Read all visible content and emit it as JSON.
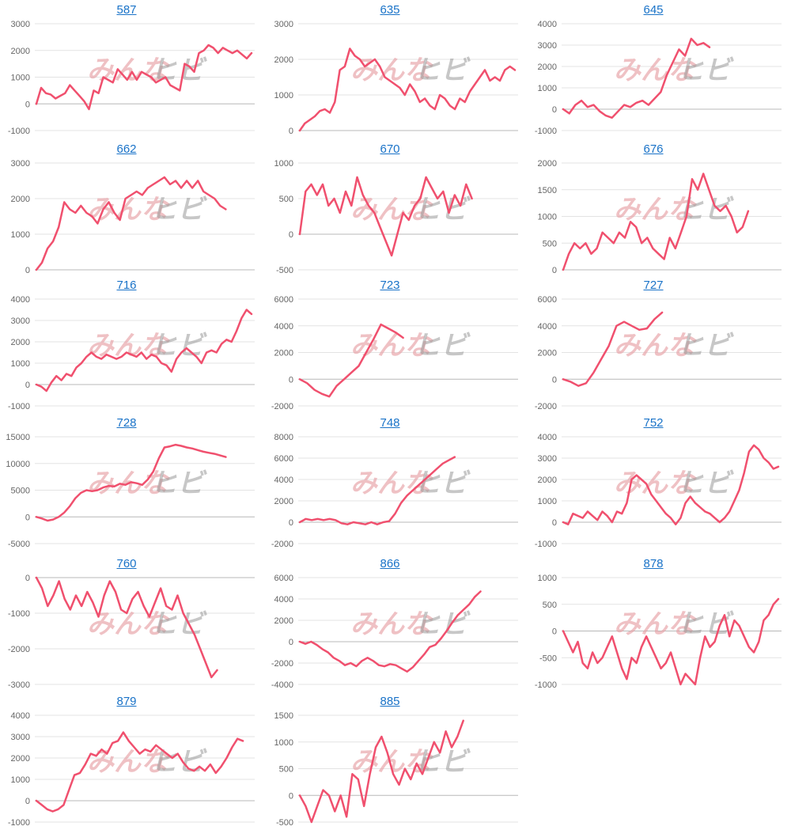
{
  "watermark": {
    "left": "みんな",
    "right": "ヒビ",
    "color_left": "#e8a0a6",
    "color_right": "#9a9a9a"
  },
  "line_color": "#f0506e",
  "link_color": "#1a73c8",
  "chart_data": [
    {
      "type": "line",
      "title": "587",
      "ylim": [
        -1000,
        3000
      ],
      "yticks": [
        -1000,
        0,
        1000,
        2000,
        3000
      ],
      "values": [
        0,
        600,
        400,
        350,
        200,
        300,
        400,
        700,
        500,
        300,
        100,
        -200,
        500,
        400,
        1000,
        900,
        800,
        1300,
        1100,
        900,
        1200,
        900,
        1200,
        1100,
        1000,
        800,
        900,
        1000,
        700,
        600,
        500,
        1500,
        1400,
        1200,
        1900,
        2000,
        2200,
        2100,
        1900,
        2100,
        2000,
        1900,
        2000,
        1850,
        1700,
        1900
      ]
    },
    {
      "type": "line",
      "title": "635",
      "ylim": [
        0,
        3000
      ],
      "yticks": [
        0,
        1000,
        2000,
        3000
      ],
      "values": [
        0,
        200,
        300,
        400,
        550,
        600,
        500,
        800,
        1700,
        1800,
        2300,
        2100,
        2000,
        1800,
        1900,
        2000,
        1800,
        1500,
        1400,
        1300,
        1200,
        1000,
        1300,
        1100,
        800,
        900,
        700,
        600,
        1000,
        900,
        700,
        600,
        900,
        800,
        1100,
        1300,
        1500,
        1700,
        1400,
        1500,
        1400,
        1700,
        1800,
        1700
      ]
    },
    {
      "type": "line",
      "title": "645",
      "ylim": [
        -1000,
        4000
      ],
      "yticks": [
        -1000,
        0,
        1000,
        2000,
        3000,
        4000
      ],
      "values": [
        0,
        -200,
        200,
        400,
        100,
        200,
        -100,
        -300,
        -400,
        -100,
        200,
        100,
        300,
        400,
        200,
        500,
        800,
        1600,
        2200,
        2800,
        2500,
        3300,
        3000,
        3100,
        2900
      ]
    },
    {
      "type": "line",
      "title": "662",
      "ylim": [
        0,
        3000
      ],
      "yticks": [
        0,
        1000,
        2000,
        3000
      ],
      "values": [
        0,
        200,
        600,
        800,
        1200,
        1900,
        1700,
        1600,
        1800,
        1600,
        1500,
        1300,
        1700,
        1900,
        1600,
        1400,
        2000,
        2100,
        2200,
        2100,
        2300,
        2400,
        2500,
        2600,
        2400,
        2500,
        2300,
        2500,
        2300,
        2500,
        2200,
        2100,
        2000,
        1800,
        1700
      ]
    },
    {
      "type": "line",
      "title": "670",
      "ylim": [
        -500,
        1000
      ],
      "yticks": [
        -500,
        0,
        500,
        1000
      ],
      "values": [
        0,
        600,
        700,
        550,
        700,
        400,
        500,
        300,
        600,
        400,
        800,
        550,
        400,
        300,
        100,
        -100,
        -300,
        0,
        300,
        200,
        400,
        500,
        800,
        650,
        500,
        600,
        300,
        550,
        400,
        700,
        500
      ]
    },
    {
      "type": "line",
      "title": "676",
      "ylim": [
        0,
        2000
      ],
      "yticks": [
        0,
        500,
        1000,
        1500,
        2000
      ],
      "values": [
        0,
        300,
        500,
        400,
        500,
        300,
        400,
        700,
        600,
        500,
        700,
        600,
        900,
        800,
        500,
        600,
        400,
        300,
        200,
        600,
        400,
        700,
        1000,
        1700,
        1500,
        1800,
        1500,
        1200,
        1100,
        1200,
        1000,
        700,
        800,
        1100
      ]
    },
    {
      "type": "line",
      "title": "716",
      "ylim": [
        -1000,
        4000
      ],
      "yticks": [
        -1000,
        0,
        1000,
        2000,
        3000,
        4000
      ],
      "values": [
        0,
        -100,
        -300,
        100,
        400,
        200,
        500,
        400,
        800,
        1000,
        1300,
        1500,
        1300,
        1200,
        1400,
        1300,
        1200,
        1300,
        1500,
        1400,
        1300,
        1500,
        1200,
        1400,
        1300,
        1000,
        900,
        600,
        1200,
        1500,
        1700,
        1500,
        1300,
        1000,
        1500,
        1600,
        1500,
        1900,
        2100,
        2000,
        2500,
        3100,
        3500,
        3300
      ]
    },
    {
      "type": "line",
      "title": "723",
      "ylim": [
        -2000,
        6000
      ],
      "yticks": [
        -2000,
        0,
        2000,
        4000,
        6000
      ],
      "values": [
        0,
        -300,
        -800,
        -1100,
        -1300,
        -500,
        0,
        500,
        1000,
        2000,
        3000,
        4100,
        3800,
        3500,
        3100
      ]
    },
    {
      "type": "line",
      "title": "727",
      "ylim": [
        -2000,
        6000
      ],
      "yticks": [
        -2000,
        0,
        2000,
        4000,
        6000
      ],
      "values": [
        0,
        -200,
        -500,
        -300,
        500,
        1500,
        2500,
        4000,
        4300,
        4000,
        3700,
        3800,
        4500,
        5000
      ]
    },
    {
      "type": "line",
      "title": "728",
      "ylim": [
        -5000,
        15000
      ],
      "yticks": [
        -5000,
        0,
        5000,
        10000,
        15000
      ],
      "values": [
        0,
        -300,
        -700,
        -500,
        0,
        800,
        2000,
        3500,
        4500,
        5000,
        4800,
        5000,
        5500,
        5800,
        5700,
        6200,
        6000,
        6500,
        6300,
        6000,
        7000,
        8500,
        11000,
        13000,
        13200,
        13500,
        13300,
        13000,
        12800,
        12500,
        12200,
        12000,
        11800,
        11500,
        11200
      ]
    },
    {
      "type": "line",
      "title": "748",
      "ylim": [
        -2000,
        8000
      ],
      "yticks": [
        -2000,
        0,
        2000,
        4000,
        6000,
        8000
      ],
      "values": [
        0,
        300,
        200,
        300,
        200,
        300,
        200,
        -100,
        -200,
        0,
        -100,
        -200,
        0,
        -200,
        0,
        100,
        800,
        1800,
        2500,
        3000,
        3500,
        4000,
        4500,
        5000,
        5500,
        5800,
        6100
      ]
    },
    {
      "type": "line",
      "title": "752",
      "ylim": [
        -1000,
        4000
      ],
      "yticks": [
        -1000,
        0,
        1000,
        2000,
        3000,
        4000
      ],
      "values": [
        0,
        -100,
        400,
        300,
        200,
        500,
        300,
        100,
        500,
        300,
        0,
        500,
        400,
        900,
        2000,
        2200,
        2000,
        1800,
        1300,
        1000,
        700,
        400,
        200,
        -100,
        200,
        900,
        1200,
        900,
        700,
        500,
        400,
        200,
        0,
        200,
        500,
        1000,
        1500,
        2300,
        3300,
        3600,
        3400,
        3000,
        2800,
        2500,
        2600
      ]
    },
    {
      "type": "line",
      "title": "760",
      "ylim": [
        -3000,
        0
      ],
      "yticks": [
        -3000,
        -2000,
        -1000,
        0
      ],
      "values": [
        0,
        -300,
        -800,
        -500,
        -100,
        -600,
        -900,
        -500,
        -800,
        -400,
        -700,
        -1100,
        -500,
        -100,
        -400,
        -900,
        -1000,
        -600,
        -400,
        -800,
        -1100,
        -700,
        -300,
        -800,
        -900,
        -500,
        -1000,
        -1300,
        -1600,
        -2000,
        -2400,
        -2800,
        -2600
      ]
    },
    {
      "type": "line",
      "title": "866",
      "ylim": [
        -4000,
        6000
      ],
      "yticks": [
        -4000,
        -2000,
        0,
        2000,
        4000,
        6000
      ],
      "values": [
        0,
        -200,
        0,
        -300,
        -700,
        -1000,
        -1500,
        -1800,
        -2200,
        -2000,
        -2300,
        -1800,
        -1500,
        -1800,
        -2200,
        -2300,
        -2100,
        -2200,
        -2500,
        -2800,
        -2400,
        -1800,
        -1200,
        -500,
        -300,
        300,
        1000,
        1800,
        2500,
        3000,
        3500,
        4200,
        4700
      ]
    },
    {
      "type": "line",
      "title": "878",
      "ylim": [
        -1000,
        1000
      ],
      "yticks": [
        -1000,
        -500,
        0,
        500,
        1000
      ],
      "values": [
        0,
        -200,
        -400,
        -200,
        -600,
        -700,
        -400,
        -600,
        -500,
        -300,
        -100,
        -400,
        -700,
        -900,
        -500,
        -600,
        -300,
        -100,
        -300,
        -500,
        -700,
        -600,
        -400,
        -700,
        -1000,
        -800,
        -900,
        -1000,
        -500,
        -100,
        -300,
        -200,
        100,
        300,
        -100,
        200,
        100,
        -100,
        -300,
        -400,
        -200,
        200,
        300,
        500,
        600
      ]
    },
    {
      "type": "line",
      "title": "879",
      "ylim": [
        -1000,
        4000
      ],
      "yticks": [
        -1000,
        0,
        1000,
        2000,
        3000,
        4000
      ],
      "values": [
        0,
        -200,
        -400,
        -500,
        -400,
        -200,
        500,
        1200,
        1300,
        1700,
        2200,
        2100,
        2400,
        2200,
        2700,
        2800,
        3200,
        2800,
        2500,
        2200,
        2400,
        2300,
        2600,
        2400,
        2200,
        2000,
        2200,
        1800,
        1500,
        1400,
        1600,
        1400,
        1700,
        1300,
        1600,
        2000,
        2500,
        2900,
        2800
      ]
    },
    {
      "type": "line",
      "title": "885",
      "ylim": [
        -500,
        1500
      ],
      "yticks": [
        -500,
        0,
        500,
        1000,
        1500
      ],
      "values": [
        0,
        -200,
        -500,
        -200,
        100,
        0,
        -300,
        0,
        -400,
        400,
        300,
        -200,
        400,
        900,
        1100,
        800,
        400,
        200,
        500,
        300,
        600,
        400,
        700,
        1000,
        800,
        1200,
        900,
        1100,
        1400
      ]
    }
  ]
}
